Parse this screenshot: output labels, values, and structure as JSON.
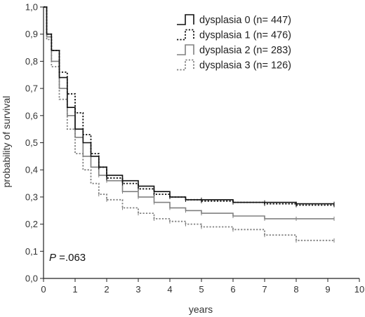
{
  "chart_data": {
    "type": "line",
    "subtype": "kaplan-meier",
    "title": "",
    "xlabel": "years",
    "ylabel": "probability of survival",
    "xlim": [
      0,
      10
    ],
    "ylim": [
      0,
      1
    ],
    "x_ticks": [
      "0",
      "1",
      "2",
      "3",
      "4",
      "5",
      "6",
      "7",
      "8",
      "9",
      "10"
    ],
    "y_ticks": [
      "0,0",
      "0,1",
      "0,2",
      "0,3",
      "0,4",
      "0,5",
      "0,6",
      "0,7",
      "0,8",
      "0,9",
      "1,0"
    ],
    "grid": false,
    "legend_position": "top-right",
    "annotation": {
      "p_symbol": "P",
      "p_value": " =.063"
    },
    "series": [
      {
        "name": "dysplasia 0 (n= 447)",
        "color": "#111111",
        "dash": "solid",
        "x": [
          0,
          0.1,
          0.25,
          0.5,
          0.75,
          1.0,
          1.25,
          1.5,
          1.75,
          2.0,
          2.5,
          3.0,
          3.5,
          4.0,
          4.5,
          5.0,
          6.0,
          7.0,
          8.0,
          9.2
        ],
        "y": [
          1.0,
          0.9,
          0.84,
          0.74,
          0.63,
          0.55,
          0.5,
          0.45,
          0.41,
          0.38,
          0.36,
          0.34,
          0.32,
          0.3,
          0.29,
          0.29,
          0.28,
          0.28,
          0.275,
          0.275
        ]
      },
      {
        "name": "dysplasia 1 (n= 476)",
        "color": "#111111",
        "dash": "dotted",
        "x": [
          0,
          0.1,
          0.25,
          0.5,
          0.75,
          1.0,
          1.25,
          1.5,
          1.75,
          2.0,
          2.5,
          3.0,
          3.5,
          4.0,
          4.5,
          5.0,
          6.0,
          7.0,
          8.0,
          9.2
        ],
        "y": [
          1.0,
          0.9,
          0.84,
          0.76,
          0.68,
          0.61,
          0.53,
          0.46,
          0.41,
          0.37,
          0.35,
          0.33,
          0.31,
          0.3,
          0.29,
          0.285,
          0.28,
          0.275,
          0.27,
          0.27
        ]
      },
      {
        "name": "dysplasia 2 (n= 283)",
        "color": "#808080",
        "dash": "solid",
        "x": [
          0,
          0.1,
          0.25,
          0.5,
          0.75,
          1.0,
          1.25,
          1.5,
          1.75,
          2.0,
          2.5,
          3.0,
          3.5,
          4.0,
          4.5,
          5.0,
          6.0,
          7.0,
          8.0,
          9.2
        ],
        "y": [
          1.0,
          0.89,
          0.8,
          0.7,
          0.6,
          0.52,
          0.45,
          0.41,
          0.38,
          0.36,
          0.32,
          0.3,
          0.28,
          0.26,
          0.25,
          0.24,
          0.23,
          0.22,
          0.22,
          0.22
        ]
      },
      {
        "name": "dysplasia 3 (n= 126)",
        "color": "#808080",
        "dash": "dotted",
        "x": [
          0,
          0.1,
          0.25,
          0.5,
          0.75,
          1.0,
          1.25,
          1.5,
          1.75,
          2.0,
          2.5,
          3.0,
          3.5,
          4.0,
          4.5,
          5.0,
          6.0,
          7.0,
          8.0,
          9.2
        ],
        "y": [
          1.0,
          0.88,
          0.78,
          0.66,
          0.55,
          0.46,
          0.4,
          0.35,
          0.31,
          0.29,
          0.26,
          0.24,
          0.22,
          0.21,
          0.2,
          0.19,
          0.18,
          0.16,
          0.14,
          0.14
        ]
      }
    ]
  }
}
